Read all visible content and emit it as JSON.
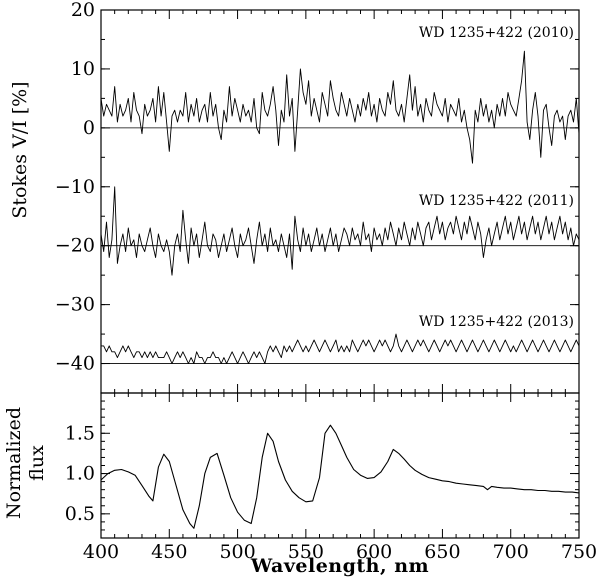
{
  "chart_data": [
    {
      "type": "line",
      "panel": "top",
      "ylabel": "Stokes V/I [%]",
      "ylim": [
        -45,
        20
      ],
      "yticks": [
        -40,
        -30,
        -20,
        -10,
        0,
        10,
        20
      ],
      "ytick_labels": [
        "−40",
        "−30",
        "−20",
        "−10",
        "0",
        "10",
        "20"
      ],
      "x_start": 400,
      "x_step": 2,
      "series": [
        {
          "name": "WD 1235+422 (2010)",
          "label": "WD 1235+422 (2010)",
          "baseline": 0,
          "values": [
            5,
            2,
            4,
            3,
            2,
            7,
            1,
            4,
            2,
            3,
            5,
            1,
            6,
            3,
            2,
            -1,
            4,
            2,
            3,
            5,
            1,
            7,
            2,
            6,
            1,
            -4,
            2,
            3,
            1,
            3,
            2,
            6,
            1,
            4,
            2,
            5,
            1,
            3,
            4,
            1,
            6,
            2,
            4,
            0,
            -2,
            3,
            1,
            7,
            2,
            5,
            3,
            1,
            4,
            2,
            3,
            1,
            5,
            0,
            -1,
            6,
            3,
            2,
            4,
            7,
            3,
            -3,
            3,
            1,
            9,
            2,
            5,
            -4,
            3,
            10,
            6,
            4,
            8,
            2,
            5,
            3,
            1,
            6,
            4,
            2,
            8,
            5,
            3,
            2,
            6,
            4,
            2,
            5,
            3,
            1,
            4,
            2,
            5,
            3,
            6,
            2,
            4,
            1,
            5,
            3,
            2,
            6,
            4,
            8,
            3,
            2,
            4,
            1,
            5,
            9,
            3,
            7,
            2,
            4,
            1,
            5,
            3,
            2,
            6,
            4,
            3,
            2,
            5,
            1,
            4,
            3,
            2,
            5,
            1,
            3,
            0,
            -2,
            -6,
            3,
            1,
            5,
            2,
            4,
            1,
            3,
            0,
            4,
            2,
            5,
            2,
            6,
            4,
            3,
            2,
            5,
            8,
            13,
            1,
            -2,
            3,
            6,
            2,
            -5,
            3,
            4,
            0,
            -3,
            2,
            3,
            1,
            2,
            -2,
            2,
            3,
            1,
            5,
            -1
          ]
        },
        {
          "name": "WD 1235+422 (2011)",
          "label": "WD 1235+422 (2011)",
          "baseline": -20,
          "values": [
            -18,
            -21,
            -16,
            -22,
            -19,
            -10,
            -23,
            -20,
            -18,
            -21,
            -17,
            -20,
            -19,
            -22,
            -18,
            -20,
            -21,
            -19,
            -17,
            -20,
            -22,
            -18,
            -20,
            -21,
            -19,
            -21,
            -25,
            -20,
            -18,
            -21,
            -14,
            -19,
            -23,
            -17,
            -20,
            -18,
            -22,
            -19,
            -16,
            -20,
            -21,
            -18,
            -19,
            -22,
            -20,
            -18,
            -21,
            -19,
            -17,
            -20,
            -22,
            -18,
            -20,
            -19,
            -17,
            -20,
            -23,
            -19,
            -16,
            -20,
            -18,
            -21,
            -17,
            -20,
            -19,
            -21,
            -18,
            -20,
            -22,
            -18,
            -24,
            -15,
            -19,
            -21,
            -17,
            -20,
            -18,
            -21,
            -19,
            -17,
            -20,
            -18,
            -21,
            -19,
            -17,
            -20,
            -18,
            -21,
            -19,
            -17,
            -18,
            -20,
            -17,
            -19,
            -18,
            -20,
            -16,
            -19,
            -18,
            -21,
            -17,
            -19,
            -18,
            -20,
            -17,
            -19,
            -16,
            -18,
            -20,
            -17,
            -19,
            -16,
            -18,
            -20,
            -17,
            -19,
            -16,
            -18,
            -20,
            -17,
            -16,
            -19,
            -17,
            -15,
            -18,
            -16,
            -19,
            -17,
            -16,
            -18,
            -15,
            -17,
            -19,
            -16,
            -18,
            -15,
            -17,
            -19,
            -16,
            -18,
            -22,
            -19,
            -17,
            -20,
            -18,
            -16,
            -19,
            -17,
            -15,
            -18,
            -16,
            -19,
            -17,
            -15,
            -18,
            -16,
            -19,
            -17,
            -15,
            -18,
            -16,
            -19,
            -17,
            -15,
            -18,
            -16,
            -19,
            -17,
            -15,
            -18,
            -16,
            -19,
            -17,
            -20,
            -18,
            -19
          ]
        },
        {
          "name": "WD 1235+422 (2013)",
          "label": "WD 1235+422 (2013)",
          "baseline": -40,
          "values": [
            -37,
            -37,
            -38,
            -37,
            -38,
            -38,
            -39,
            -38,
            -37,
            -38,
            -37,
            -38,
            -39,
            -38,
            -38,
            -39,
            -38,
            -39,
            -38,
            -39,
            -38,
            -39,
            -39,
            -39,
            -38,
            -39,
            -40,
            -39,
            -38,
            -39,
            -38,
            -39,
            -40,
            -39,
            -40,
            -38,
            -39,
            -39,
            -40,
            -39,
            -39,
            -38,
            -39,
            -39,
            -40,
            -39,
            -40,
            -39,
            -38,
            -39,
            -40,
            -39,
            -38,
            -39,
            -40,
            -39,
            -38,
            -39,
            -38,
            -39,
            -40,
            -38,
            -37,
            -38,
            -37,
            -38,
            -39,
            -37,
            -38,
            -37,
            -38,
            -37,
            -36,
            -37,
            -38,
            -37,
            -38,
            -37,
            -36,
            -37,
            -38,
            -37,
            -36,
            -37,
            -38,
            -37,
            -36,
            -38,
            -37,
            -38,
            -37,
            -38,
            -36,
            -37,
            -38,
            -37,
            -36,
            -37,
            -36,
            -37,
            -38,
            -37,
            -36,
            -37,
            -36,
            -37,
            -38,
            -37,
            -35,
            -37,
            -38,
            -37,
            -36,
            -37,
            -38,
            -37,
            -36,
            -37,
            -36,
            -37,
            -38,
            -37,
            -36,
            -37,
            -38,
            -37,
            -36,
            -37,
            -36,
            -37,
            -38,
            -37,
            -36,
            -37,
            -38,
            -37,
            -36,
            -37,
            -38,
            -37,
            -36,
            -37,
            -38,
            -37,
            -36,
            -37,
            -38,
            -37,
            -36,
            -37,
            -38,
            -37,
            -38,
            -37,
            -36,
            -37,
            -38,
            -37,
            -36,
            -37,
            -38,
            -37,
            -36,
            -37,
            -38,
            -37,
            -36,
            -37,
            -38,
            -37,
            -36,
            -37,
            -38,
            -37,
            -36,
            -37
          ]
        }
      ]
    },
    {
      "type": "line",
      "panel": "bottom",
      "ylabel_lines": [
        "Normalized",
        "flux"
      ],
      "ylim": [
        0.2,
        2.0
      ],
      "yticks": [
        0.5,
        1.0,
        1.5
      ],
      "ytick_labels": [
        "0.5",
        "1.0",
        "1.5"
      ],
      "xlabel": "Wavelength, nm",
      "xlim": [
        400,
        750
      ],
      "xticks": [
        400,
        450,
        500,
        550,
        600,
        650,
        700,
        750
      ],
      "xtick_labels": [
        "400",
        "450",
        "500",
        "550",
        "600",
        "650",
        "700",
        "750"
      ],
      "series": [
        {
          "name": "Normalized flux",
          "x": [
            400,
            405,
            410,
            415,
            420,
            425,
            430,
            435,
            438,
            442,
            446,
            450,
            455,
            460,
            465,
            468,
            472,
            476,
            480,
            485,
            490,
            495,
            500,
            505,
            510,
            514,
            518,
            522,
            526,
            530,
            535,
            540,
            545,
            550,
            555,
            560,
            564,
            568,
            572,
            576,
            580,
            585,
            590,
            595,
            600,
            605,
            610,
            614,
            618,
            622,
            626,
            630,
            635,
            640,
            645,
            650,
            655,
            660,
            665,
            670,
            675,
            680,
            683,
            686,
            690,
            695,
            700,
            705,
            710,
            715,
            720,
            725,
            730,
            735,
            740,
            745,
            750
          ],
          "values": [
            0.92,
            1.0,
            1.04,
            1.05,
            1.02,
            0.98,
            0.85,
            0.72,
            0.66,
            1.08,
            1.24,
            1.15,
            0.85,
            0.55,
            0.38,
            0.32,
            0.6,
            1.0,
            1.2,
            1.25,
            0.98,
            0.7,
            0.52,
            0.42,
            0.38,
            0.7,
            1.2,
            1.5,
            1.4,
            1.15,
            0.92,
            0.78,
            0.7,
            0.65,
            0.66,
            0.95,
            1.5,
            1.6,
            1.5,
            1.35,
            1.2,
            1.05,
            0.98,
            0.94,
            0.95,
            1.02,
            1.15,
            1.3,
            1.25,
            1.18,
            1.1,
            1.04,
            0.99,
            0.95,
            0.93,
            0.91,
            0.9,
            0.88,
            0.87,
            0.86,
            0.85,
            0.84,
            0.8,
            0.84,
            0.83,
            0.82,
            0.82,
            0.81,
            0.8,
            0.8,
            0.79,
            0.79,
            0.78,
            0.78,
            0.77,
            0.77,
            0.76
          ]
        }
      ]
    }
  ]
}
